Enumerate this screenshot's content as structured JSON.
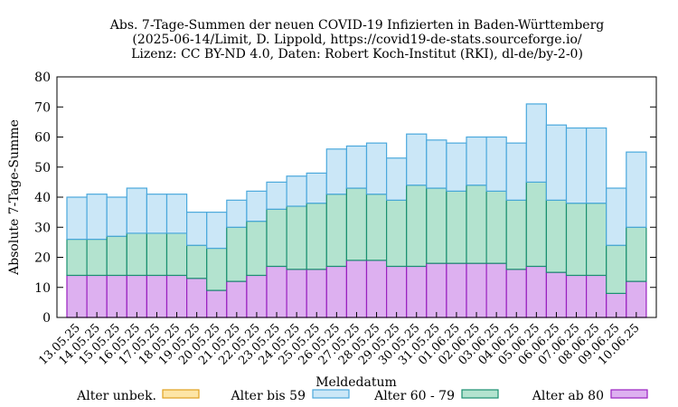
{
  "chart_data": {
    "type": "bar",
    "stacked": true,
    "title_lines": [
      "Abs. 7-Tage-Summen der neuen COVID-19 Infizierten in Baden-Württemberg",
      "(2025-06-14/Limit, D. Lippold, https://covid19-de-stats.sourceforge.io/",
      "Lizenz: CC BY-ND 4.0, Daten: Robert Koch-Institut (RKI), dl-de/by-2-0)"
    ],
    "xlabel": "Meldedatum",
    "ylabel": "Absolute 7-Tage-Summe",
    "ylim": [
      0,
      80
    ],
    "yticks": [
      0,
      10,
      20,
      30,
      40,
      50,
      60,
      70,
      80
    ],
    "grid": false,
    "legend_position": "bottom",
    "categories": [
      "13.05.25",
      "14.05.25",
      "15.05.25",
      "16.05.25",
      "17.05.25",
      "18.05.25",
      "19.05.25",
      "20.05.25",
      "21.05.25",
      "22.05.25",
      "23.05.25",
      "24.05.25",
      "25.05.25",
      "26.05.25",
      "27.05.25",
      "28.05.25",
      "29.05.25",
      "30.05.25",
      "31.05.25",
      "01.06.25",
      "02.06.25",
      "03.06.25",
      "04.06.25",
      "05.06.25",
      "06.06.25",
      "07.06.25",
      "08.06.25",
      "09.06.25",
      "10.06.25"
    ],
    "series": [
      {
        "name": "Alter unbek.",
        "fill": "#fde5a6",
        "stroke": "#e0a020",
        "values": [
          0,
          0,
          0,
          0,
          0,
          0,
          0,
          0,
          0,
          0,
          0,
          0,
          0,
          0,
          0,
          0,
          0,
          0,
          0,
          0,
          0,
          0,
          0,
          0,
          0,
          0,
          0,
          0,
          0
        ]
      },
      {
        "name": "Alter ab 80",
        "fill": "#ddb0f0",
        "stroke": "#9a20c0",
        "values": [
          14,
          14,
          14,
          14,
          14,
          14,
          13,
          9,
          12,
          14,
          17,
          16,
          16,
          17,
          19,
          19,
          17,
          17,
          18,
          18,
          18,
          18,
          16,
          17,
          15,
          14,
          14,
          8,
          12
        ]
      },
      {
        "name": "Alter 60 - 79",
        "fill": "#b3e3cf",
        "stroke": "#1a9070",
        "values": [
          12,
          12,
          13,
          14,
          14,
          14,
          11,
          14,
          18,
          18,
          19,
          21,
          22,
          24,
          24,
          22,
          22,
          27,
          25,
          24,
          26,
          24,
          23,
          28,
          24,
          24,
          24,
          16,
          18
        ]
      },
      {
        "name": "Alter bis 59",
        "fill": "#cbe7f7",
        "stroke": "#4aa8dc",
        "values": [
          14,
          15,
          13,
          15,
          13,
          13,
          11,
          12,
          9,
          10,
          9,
          10,
          10,
          15,
          14,
          17,
          14,
          17,
          16,
          16,
          16,
          18,
          19,
          26,
          25,
          25,
          25,
          19,
          25
        ]
      }
    ],
    "legend_order": [
      "Alter unbek.",
      "Alter bis 59",
      "Alter 60 - 79",
      "Alter ab 80"
    ]
  }
}
